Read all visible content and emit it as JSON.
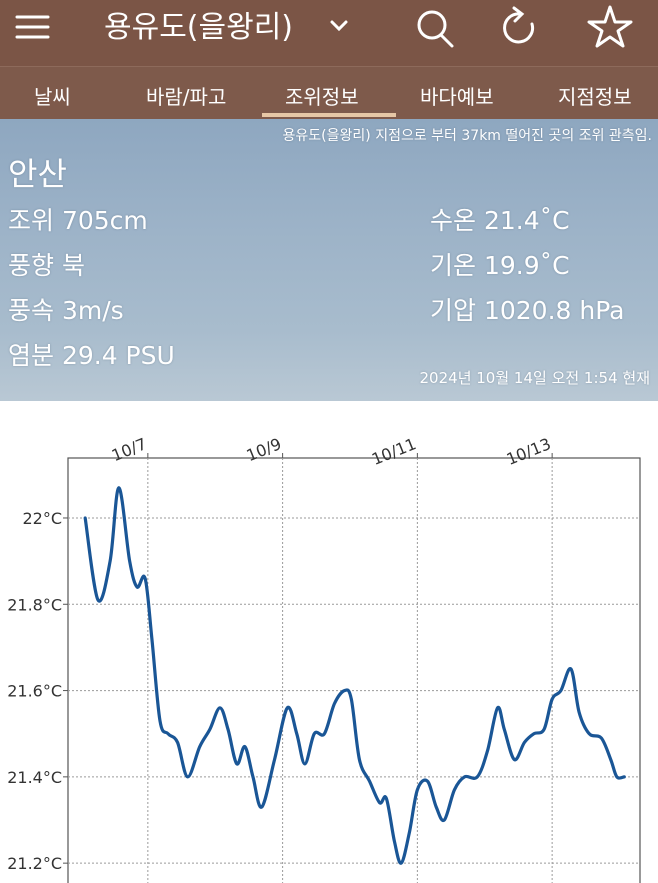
{
  "header": {
    "title": "용유도(을왕리)"
  },
  "tabs": [
    "날씨",
    "바람/파고",
    "조위정보",
    "바다예보",
    "지점정보"
  ],
  "station": {
    "note": "용유도(을왕리) 지점으로 부터 37km 떨어진 곳의 조위 관측임.",
    "name": "안산",
    "left": [
      "조위 705cm",
      "풍향 북",
      "풍속 3m/s",
      "염분 29.4 PSU"
    ],
    "right": [
      "수온 21.4˚C",
      "기온 19.9˚C",
      "기압 1020.8 hPa"
    ],
    "timestamp": "2024년 10월 14일 오전 1:54 현재"
  },
  "chart_data": {
    "type": "line",
    "color": "#1a5696",
    "grid": true,
    "x": [
      6.07,
      6.26,
      6.44,
      6.57,
      6.73,
      6.84,
      6.96,
      7.06,
      7.18,
      7.3,
      7.44,
      7.59,
      7.77,
      7.92,
      8.07,
      8.19,
      8.32,
      8.44,
      8.56,
      8.69,
      8.88,
      9.07,
      9.21,
      9.33,
      9.47,
      9.62,
      9.77,
      9.92,
      10.02,
      10.14,
      10.29,
      10.44,
      10.54,
      10.66,
      10.76,
      10.88,
      11.0,
      11.15,
      11.28,
      11.4,
      11.55,
      11.7,
      11.89,
      12.04,
      12.19,
      12.29,
      12.44,
      12.59,
      12.73,
      12.88,
      13.0,
      13.13,
      13.28,
      13.4,
      13.55,
      13.73,
      13.87,
      13.96,
      14.07
    ],
    "values": [
      22.0,
      21.81,
      21.9,
      22.07,
      21.9,
      21.84,
      21.86,
      21.72,
      21.53,
      21.5,
      21.48,
      21.4,
      21.47,
      21.51,
      21.56,
      21.51,
      21.43,
      21.47,
      21.4,
      21.33,
      21.44,
      21.56,
      21.5,
      21.43,
      21.5,
      21.5,
      21.57,
      21.6,
      21.58,
      21.44,
      21.39,
      21.34,
      21.35,
      21.25,
      21.2,
      21.27,
      21.37,
      21.39,
      21.33,
      21.3,
      21.37,
      21.4,
      21.4,
      21.46,
      21.56,
      21.51,
      21.44,
      21.48,
      21.5,
      21.51,
      21.58,
      21.6,
      21.65,
      21.55,
      21.5,
      21.49,
      21.44,
      21.4,
      21.4
    ],
    "xlim": [
      5.815,
      14.304
    ],
    "xticks": [
      {
        "value": 7,
        "label": "10/7"
      },
      {
        "value": 9,
        "label": "10/9"
      },
      {
        "value": 11,
        "label": "10/11"
      },
      {
        "value": 13,
        "label": "10/13"
      }
    ],
    "ylim": [
      21.154,
      22.139
    ],
    "yticks": [
      {
        "value": 21.2,
        "label": "21.2°C"
      },
      {
        "value": 21.4,
        "label": "21.4°C"
      },
      {
        "value": 21.6,
        "label": "21.6°C"
      },
      {
        "value": 21.8,
        "label": "21.8°C"
      },
      {
        "value": 22,
        "label": "22°C"
      }
    ]
  }
}
